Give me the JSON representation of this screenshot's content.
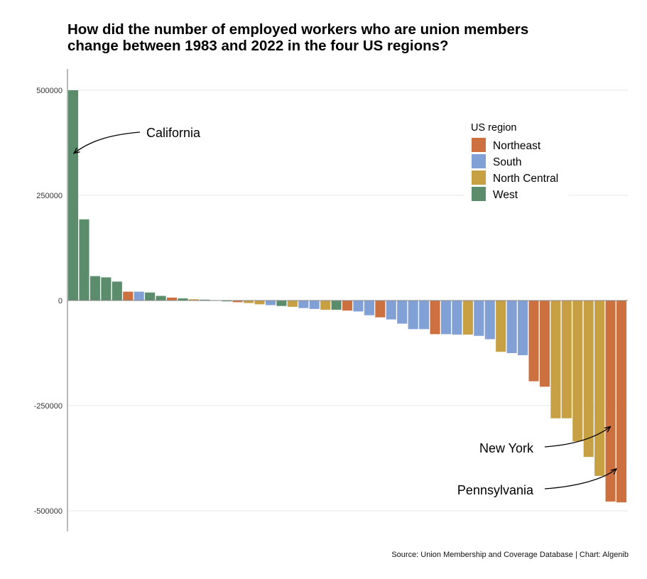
{
  "title_lines": [
    "How did the number of employed workers who are union members",
    "change between 1983 and 2022 in the four US regions?"
  ],
  "source": "Source: Union Membership and Coverage Database | Chart: Algenib",
  "legend": {
    "title": "US region",
    "entries": [
      {
        "key": "Northeast",
        "label": "Northeast",
        "color": "#CC7040"
      },
      {
        "key": "South",
        "label": "South",
        "color": "#80A0D6"
      },
      {
        "key": "North Central",
        "label": "North Central",
        "color": "#C8A044"
      },
      {
        "key": "West",
        "label": "West",
        "color": "#5B8C6C"
      }
    ]
  },
  "annotations": [
    {
      "label": "California",
      "target_bar": 0,
      "target_value": 350000
    },
    {
      "label": "New York",
      "target_bar": 49,
      "target_value": -300000
    },
    {
      "label": "Pennsylvania",
      "target_bar": 50,
      "target_value": -400000
    }
  ],
  "chart_data": {
    "type": "bar",
    "title": "How did the number of employed workers who are union members change between 1983 and 2022 in the four US regions?",
    "xlabel": "",
    "ylabel": "",
    "ylim": [
      -550000,
      550000
    ],
    "yticks": [
      500000,
      250000,
      0,
      -250000,
      -500000
    ],
    "ytick_labels": [
      "500000",
      "250000",
      "0",
      "-250000",
      "-500000"
    ],
    "grid": true,
    "legend_position": "top-right",
    "bars": [
      {
        "region": "West",
        "value": 500000,
        "label": "California"
      },
      {
        "region": "West",
        "value": 193000
      },
      {
        "region": "West",
        "value": 58000
      },
      {
        "region": "West",
        "value": 55000
      },
      {
        "region": "West",
        "value": 45000
      },
      {
        "region": "Northeast",
        "value": 21000
      },
      {
        "region": "South",
        "value": 21000
      },
      {
        "region": "West",
        "value": 19000
      },
      {
        "region": "West",
        "value": 11000
      },
      {
        "region": "Northeast",
        "value": 7000
      },
      {
        "region": "West",
        "value": 5000
      },
      {
        "region": "North Central",
        "value": 3000
      },
      {
        "region": "West",
        "value": 2000
      },
      {
        "region": "South",
        "value": 1000
      },
      {
        "region": "West",
        "value": -2000
      },
      {
        "region": "Northeast",
        "value": -4000
      },
      {
        "region": "North Central",
        "value": -6000
      },
      {
        "region": "North Central",
        "value": -9000
      },
      {
        "region": "South",
        "value": -11000
      },
      {
        "region": "West",
        "value": -13000
      },
      {
        "region": "North Central",
        "value": -15000
      },
      {
        "region": "South",
        "value": -18000
      },
      {
        "region": "South",
        "value": -20000
      },
      {
        "region": "North Central",
        "value": -22000
      },
      {
        "region": "West",
        "value": -22000
      },
      {
        "region": "Northeast",
        "value": -24000
      },
      {
        "region": "South",
        "value": -26000
      },
      {
        "region": "South",
        "value": -35000
      },
      {
        "region": "Northeast",
        "value": -40000
      },
      {
        "region": "South",
        "value": -45000
      },
      {
        "region": "South",
        "value": -55000
      },
      {
        "region": "South",
        "value": -68000
      },
      {
        "region": "South",
        "value": -68000
      },
      {
        "region": "Northeast",
        "value": -80000
      },
      {
        "region": "South",
        "value": -80000
      },
      {
        "region": "South",
        "value": -81000
      },
      {
        "region": "North Central",
        "value": -81000
      },
      {
        "region": "South",
        "value": -84000
      },
      {
        "region": "South",
        "value": -92000
      },
      {
        "region": "North Central",
        "value": -122000
      },
      {
        "region": "South",
        "value": -125000
      },
      {
        "region": "South",
        "value": -130000
      },
      {
        "region": "Northeast",
        "value": -192000
      },
      {
        "region": "Northeast",
        "value": -205000
      },
      {
        "region": "North Central",
        "value": -280000
      },
      {
        "region": "North Central",
        "value": -280000
      },
      {
        "region": "North Central",
        "value": -335000
      },
      {
        "region": "North Central",
        "value": -372000
      },
      {
        "region": "North Central",
        "value": -417000
      },
      {
        "region": "Northeast",
        "value": -478000,
        "label": "New York"
      },
      {
        "region": "Northeast",
        "value": -480000,
        "label": "Pennsylvania"
      }
    ]
  }
}
